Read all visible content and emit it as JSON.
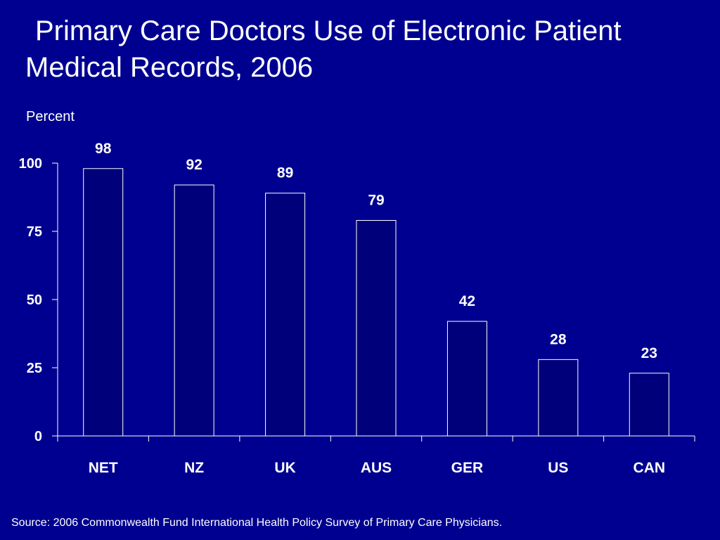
{
  "slide": {
    "title_line1": "Primary Care Doctors Use of Electronic Patient",
    "title_line2": "Medical Records, 2006",
    "source": "Source: 2006 Commonwealth Fund International Health Policy Survey of Primary Care Physicians."
  },
  "colors": {
    "background": "#000090",
    "bar_fill": "#00007a",
    "bar_stroke": "#ffffff",
    "text": "#ffffff"
  },
  "chart_data": {
    "type": "bar",
    "title": "Primary Care Doctors Use of Electronic Patient Medical Records, 2006",
    "ylabel": "Percent",
    "xlabel": "",
    "categories": [
      "NET",
      "NZ",
      "UK",
      "AUS",
      "GER",
      "US",
      "CAN"
    ],
    "values": [
      98,
      92,
      89,
      79,
      42,
      28,
      23
    ],
    "data_labels": [
      "98",
      "92",
      "89",
      "79",
      "42",
      "28",
      "23"
    ],
    "ylim": [
      0,
      100
    ],
    "yticks": [
      0,
      25,
      50,
      75,
      100
    ],
    "ytick_labels": [
      "0",
      "25",
      "50",
      "75",
      "100"
    ],
    "grid": false,
    "legend": "none"
  }
}
